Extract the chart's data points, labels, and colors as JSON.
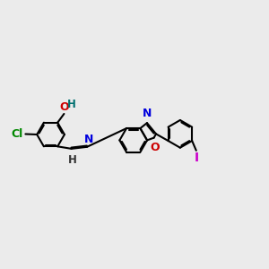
{
  "bg_color": "#ebebeb",
  "bond_color": "#000000",
  "bond_width": 1.5,
  "dbo": 0.055,
  "xlim": [
    0.0,
    11.5
  ],
  "ylim": [
    0.8,
    5.5
  ],
  "figsize": [
    3.0,
    3.0
  ],
  "dpi": 100
}
